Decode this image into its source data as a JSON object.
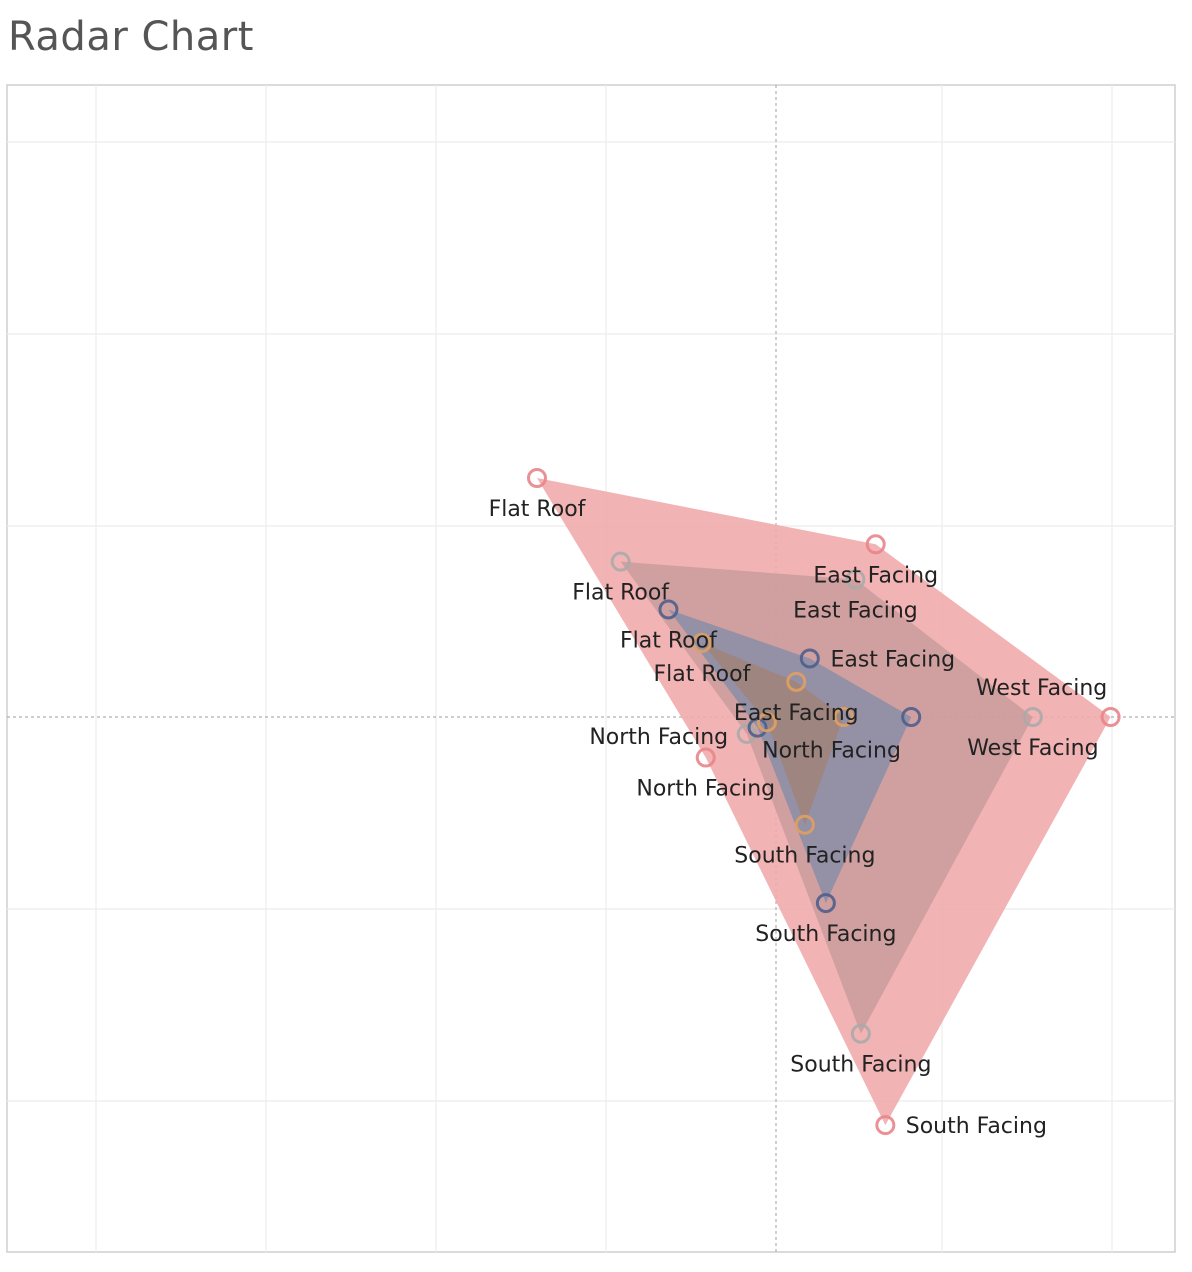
{
  "title": "Radar Chart",
  "chart_data": {
    "type": "radar",
    "title": "Radar Chart",
    "axes_labels": [
      "Flat Roof",
      "East Facing",
      "West Facing",
      "South Facing",
      "North Facing"
    ],
    "axis_angles_deg": [
      135,
      60,
      0,
      -75,
      -150
    ],
    "grid": true,
    "series": [
      {
        "color": "#e8858a",
        "fill": "#f0a8aa",
        "opacity": 0.88,
        "values": [
          1.0,
          0.59,
          0.99,
          1.25,
          0.24
        ]
      },
      {
        "color": "#aaaaaa",
        "fill": "#c49a9a",
        "opacity": 0.75,
        "values": [
          0.65,
          0.47,
          0.76,
          0.97,
          0.1
        ]
      },
      {
        "color": "#4e5e8c",
        "fill": "#8e8ea6",
        "opacity": 0.92,
        "values": [
          0.45,
          0.2,
          0.4,
          0.57,
          0.063
        ]
      },
      {
        "color": "#e0a060",
        "fill": "#a08478",
        "opacity": 0.85,
        "values": [
          0.31,
          0.12,
          0.2,
          0.33,
          0.031
        ]
      }
    ]
  }
}
